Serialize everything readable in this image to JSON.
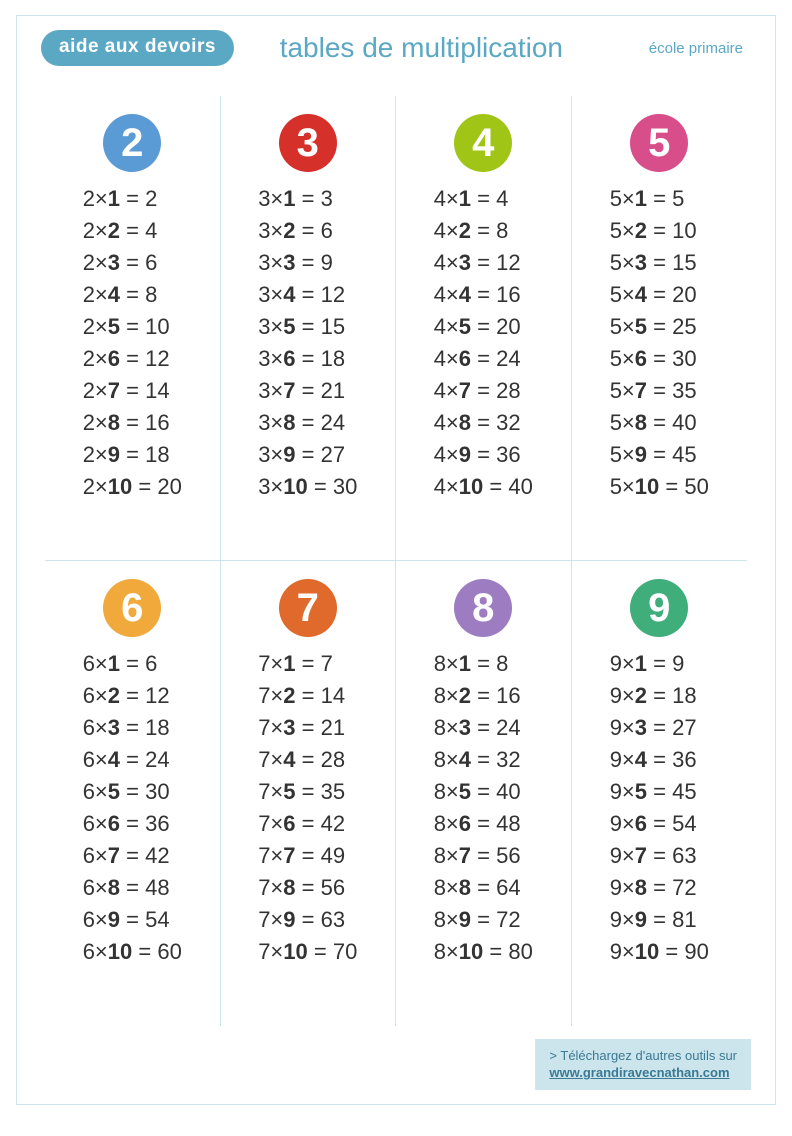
{
  "header": {
    "logo": "aide aux devoirs",
    "title": "tables de multiplication",
    "subtitle": "école primaire"
  },
  "colors": {
    "border": "#cce4ec",
    "accent": "#5ba8c4",
    "text": "#333333",
    "logo_bg": "#5ba8c4",
    "footer_bg": "#cce4ec",
    "footer_text": "#3a7a94",
    "background": "#ffffff"
  },
  "typography": {
    "title_fontsize": 28,
    "subtitle_fontsize": 15,
    "badge_fontsize": 40,
    "row_fontsize": 22,
    "footer_fontsize": 13
  },
  "layout": {
    "badge_diameter": 58,
    "grid_cols": 4,
    "grid_rows": 2
  },
  "tables": [
    {
      "n": 2,
      "badge_color": "#5b9bd5",
      "rows": [
        [
          2,
          1,
          2
        ],
        [
          2,
          2,
          4
        ],
        [
          2,
          3,
          6
        ],
        [
          2,
          4,
          8
        ],
        [
          2,
          5,
          10
        ],
        [
          2,
          6,
          12
        ],
        [
          2,
          7,
          14
        ],
        [
          2,
          8,
          16
        ],
        [
          2,
          9,
          18
        ],
        [
          2,
          10,
          20
        ]
      ]
    },
    {
      "n": 3,
      "badge_color": "#d6302b",
      "rows": [
        [
          3,
          1,
          3
        ],
        [
          3,
          2,
          6
        ],
        [
          3,
          3,
          9
        ],
        [
          3,
          4,
          12
        ],
        [
          3,
          5,
          15
        ],
        [
          3,
          6,
          18
        ],
        [
          3,
          7,
          21
        ],
        [
          3,
          8,
          24
        ],
        [
          3,
          9,
          27
        ],
        [
          3,
          10,
          30
        ]
      ]
    },
    {
      "n": 4,
      "badge_color": "#a1c517",
      "rows": [
        [
          4,
          1,
          4
        ],
        [
          4,
          2,
          8
        ],
        [
          4,
          3,
          12
        ],
        [
          4,
          4,
          16
        ],
        [
          4,
          5,
          20
        ],
        [
          4,
          6,
          24
        ],
        [
          4,
          7,
          28
        ],
        [
          4,
          8,
          32
        ],
        [
          4,
          9,
          36
        ],
        [
          4,
          10,
          40
        ]
      ]
    },
    {
      "n": 5,
      "badge_color": "#d84e8a",
      "rows": [
        [
          5,
          1,
          5
        ],
        [
          5,
          2,
          10
        ],
        [
          5,
          3,
          15
        ],
        [
          5,
          4,
          20
        ],
        [
          5,
          5,
          25
        ],
        [
          5,
          6,
          30
        ],
        [
          5,
          7,
          35
        ],
        [
          5,
          8,
          40
        ],
        [
          5,
          9,
          45
        ],
        [
          5,
          10,
          50
        ]
      ]
    },
    {
      "n": 6,
      "badge_color": "#f0a93a",
      "rows": [
        [
          6,
          1,
          6
        ],
        [
          6,
          2,
          12
        ],
        [
          6,
          3,
          18
        ],
        [
          6,
          4,
          24
        ],
        [
          6,
          5,
          30
        ],
        [
          6,
          6,
          36
        ],
        [
          6,
          7,
          42
        ],
        [
          6,
          8,
          48
        ],
        [
          6,
          9,
          54
        ],
        [
          6,
          10,
          60
        ]
      ]
    },
    {
      "n": 7,
      "badge_color": "#e06a2b",
      "rows": [
        [
          7,
          1,
          7
        ],
        [
          7,
          2,
          14
        ],
        [
          7,
          3,
          21
        ],
        [
          7,
          4,
          28
        ],
        [
          7,
          5,
          35
        ],
        [
          7,
          6,
          42
        ],
        [
          7,
          7,
          49
        ],
        [
          7,
          8,
          56
        ],
        [
          7,
          9,
          63
        ],
        [
          7,
          10,
          70
        ]
      ]
    },
    {
      "n": 8,
      "badge_color": "#9d7cc1",
      "rows": [
        [
          8,
          1,
          8
        ],
        [
          8,
          2,
          16
        ],
        [
          8,
          3,
          24
        ],
        [
          8,
          4,
          32
        ],
        [
          8,
          5,
          40
        ],
        [
          8,
          6,
          48
        ],
        [
          8,
          7,
          56
        ],
        [
          8,
          8,
          64
        ],
        [
          8,
          9,
          72
        ],
        [
          8,
          10,
          80
        ]
      ]
    },
    {
      "n": 9,
      "badge_color": "#3fae7a",
      "rows": [
        [
          9,
          1,
          9
        ],
        [
          9,
          2,
          18
        ],
        [
          9,
          3,
          27
        ],
        [
          9,
          4,
          36
        ],
        [
          9,
          5,
          45
        ],
        [
          9,
          6,
          54
        ],
        [
          9,
          7,
          63
        ],
        [
          9,
          8,
          72
        ],
        [
          9,
          9,
          81
        ],
        [
          9,
          10,
          90
        ]
      ]
    }
  ],
  "footer": {
    "line1": "> Téléchargez d'autres outils sur",
    "link": "www.grandiravecnathan.com"
  }
}
